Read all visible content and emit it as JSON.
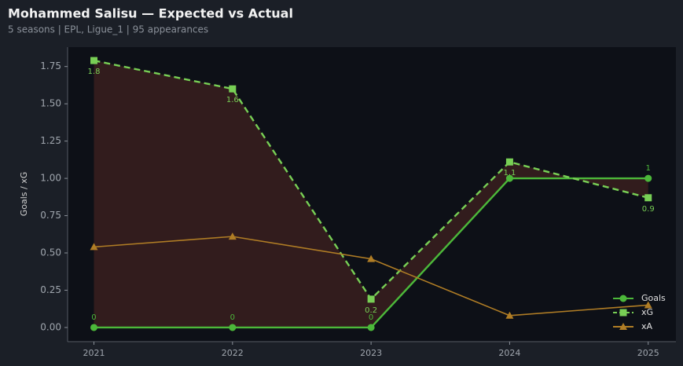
{
  "chart_data": {
    "type": "line",
    "title": "Mohammed Salisu — Expected vs Actual",
    "subtitle": "5 seasons | EPL, Ligue_1 | 95 appearances",
    "y_label": "Goals / xG",
    "x": [
      2021,
      2022,
      2023,
      2024,
      2025
    ],
    "xlim": [
      2020.81,
      2025.2
    ],
    "xticks": [
      2021,
      2022,
      2023,
      2024,
      2025
    ],
    "ylim": [
      -0.095,
      1.88
    ],
    "yticks": [
      {
        "value": 0,
        "label": "0.00"
      },
      {
        "value": 0.25,
        "label": "0.25"
      },
      {
        "value": 0.5,
        "label": "0.50"
      },
      {
        "value": 0.75,
        "label": "0.75"
      },
      {
        "value": 1,
        "label": "1.00"
      },
      {
        "value": 1.25,
        "label": "1.25"
      },
      {
        "value": 1.5,
        "label": "1.50"
      },
      {
        "value": 1.75,
        "label": "1.75"
      }
    ],
    "legend": "lower right",
    "fill_between": {
      "color": "#3a1f1f"
    },
    "series": [
      {
        "name": "Goals",
        "color": "#4cb83a",
        "marker": "circle",
        "dash": false,
        "values": [
          0,
          0,
          0,
          1,
          1
        ],
        "value_labels": [
          "0",
          "0",
          "0",
          null,
          "1"
        ]
      },
      {
        "name": "xG",
        "color": "#78cf55",
        "marker": "square",
        "dash": true,
        "values": [
          1.79,
          1.6,
          0.19,
          1.11,
          0.87
        ],
        "value_labels": [
          "1.8",
          "1.6",
          "0.2",
          "1.1",
          "0.9"
        ]
      },
      {
        "name": "xA",
        "color": "#b07d25",
        "marker": "triangle",
        "dash": false,
        "values": [
          0.54,
          0.61,
          0.46,
          0.08,
          0.15
        ]
      }
    ]
  }
}
